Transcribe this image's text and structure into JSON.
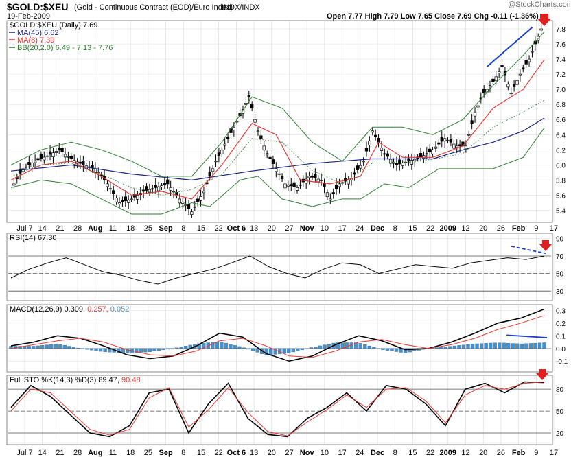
{
  "header": {
    "symbol": "$GOLD:$XEU",
    "description": "(Gold - Continuous Contract (EOD)/Euro Index)",
    "exchange": "INDX/INDX",
    "date": "19-Feb-2009",
    "copyright": "@StockCharts.com",
    "ohlc": "Open 7.77  High 7.79  Low 7.65  Close 7.69  Chg -0.11 (-1.36%)"
  },
  "legend": {
    "main": "$GOLD:$XEU (Daily) 7.69",
    "ma45": "MA(45) 6.62",
    "ma8": "MA(8) 7.39",
    "bb": "BB(20,2.0) 6.49 - 7.13 - 7.76",
    "rsi": "RSI(14) 67.30",
    "macd_label": "MACD(12,26,9)",
    "macd_v1": "0.309,",
    "macd_v2": "0.257,",
    "macd_v3": "0.052",
    "sto_label": "Full STO %K(14,3) %D(3)",
    "sto_v1": "89.47,",
    "sto_v2": "90.48"
  },
  "colors": {
    "price": "#000000",
    "ma45": "#1a237e",
    "ma8": "#e53935",
    "bb": "#2e7d32",
    "bb_mid": "#2e7d32",
    "macd_hist": "#4a90c8",
    "arrow": "#e02020",
    "trend": "#1a3fd0"
  },
  "x_labels": [
    "Jul 7",
    "14",
    "21",
    "28",
    "Aug",
    "11",
    "18",
    "25",
    "Sep",
    "8",
    "15",
    "22",
    "Oct 6",
    "13",
    "20",
    "27",
    "Nov",
    "10",
    "17",
    "24",
    "Dec",
    "8",
    "15",
    "22",
    "2009",
    "12",
    "20",
    "26",
    "Feb",
    "9",
    "17"
  ],
  "bold_x_labels": [
    "Aug",
    "Sep",
    "Oct 6",
    "Nov",
    "Dec",
    "2009",
    "Feb"
  ],
  "chart_data": [
    {
      "type": "candlestick",
      "title": "$GOLD:$XEU (Daily) 7.69",
      "ylim": [
        5.25,
        7.9
      ],
      "y_ticks": [
        "7.8",
        "7.6",
        "7.4",
        "7.2",
        "7.0",
        "6.8",
        "6.6",
        "6.4",
        "6.2",
        "6.0",
        "5.8",
        "5.6",
        "5.4"
      ],
      "close_points": [
        [
          1,
          5.75
        ],
        [
          4,
          5.95
        ],
        [
          8,
          6.05
        ],
        [
          12,
          6.12
        ],
        [
          16,
          6.2
        ],
        [
          20,
          6.08
        ],
        [
          24,
          6.0
        ],
        [
          28,
          5.95
        ],
        [
          32,
          5.75
        ],
        [
          36,
          5.5
        ],
        [
          40,
          5.55
        ],
        [
          44,
          5.65
        ],
        [
          48,
          5.7
        ],
        [
          52,
          5.75
        ],
        [
          56,
          5.55
        ],
        [
          60,
          5.38
        ],
        [
          64,
          5.65
        ],
        [
          68,
          6.05
        ],
        [
          72,
          6.35
        ],
        [
          76,
          6.65
        ],
        [
          79,
          6.9
        ],
        [
          82,
          6.45
        ],
        [
          85,
          6.15
        ],
        [
          88,
          5.95
        ],
        [
          91,
          5.75
        ],
        [
          95,
          5.7
        ],
        [
          99,
          5.85
        ],
        [
          103,
          5.8
        ],
        [
          106,
          5.55
        ],
        [
          109,
          5.75
        ],
        [
          113,
          5.82
        ],
        [
          117,
          6.05
        ],
        [
          120,
          6.45
        ],
        [
          124,
          6.15
        ],
        [
          128,
          6.0
        ],
        [
          132,
          6.05
        ],
        [
          136,
          6.1
        ],
        [
          140,
          6.2
        ],
        [
          144,
          6.35
        ],
        [
          148,
          6.25
        ],
        [
          151,
          6.25
        ],
        [
          154,
          6.7
        ],
        [
          157,
          6.95
        ],
        [
          160,
          7.1
        ],
        [
          163,
          7.3
        ],
        [
          166,
          6.95
        ],
        [
          169,
          7.2
        ],
        [
          172,
          7.4
        ],
        [
          175,
          7.7
        ],
        [
          176,
          7.8
        ],
        [
          177,
          7.69
        ]
      ],
      "series": [
        {
          "name": "MA(45)",
          "points": [
            [
              0,
              5.92
            ],
            [
              20,
              6.0
            ],
            [
              40,
              5.88
            ],
            [
              60,
              5.8
            ],
            [
              80,
              5.92
            ],
            [
              100,
              6.02
            ],
            [
              120,
              6.08
            ],
            [
              140,
              6.08
            ],
            [
              150,
              6.2
            ],
            [
              160,
              6.3
            ],
            [
              170,
              6.45
            ],
            [
              177,
              6.62
            ]
          ]
        },
        {
          "name": "MA(8)",
          "points": [
            [
              0,
              5.8
            ],
            [
              10,
              6.0
            ],
            [
              20,
              6.05
            ],
            [
              30,
              5.85
            ],
            [
              40,
              5.6
            ],
            [
              50,
              5.65
            ],
            [
              60,
              5.55
            ],
            [
              70,
              6.0
            ],
            [
              80,
              6.55
            ],
            [
              88,
              6.4
            ],
            [
              96,
              5.8
            ],
            [
              106,
              5.75
            ],
            [
              116,
              5.85
            ],
            [
              122,
              6.3
            ],
            [
              130,
              6.1
            ],
            [
              140,
              6.1
            ],
            [
              150,
              6.25
            ],
            [
              160,
              6.75
            ],
            [
              170,
              7.0
            ],
            [
              177,
              7.39
            ]
          ]
        },
        {
          "name": "BB upper",
          "points": [
            [
              0,
              6.0
            ],
            [
              10,
              6.2
            ],
            [
              20,
              6.3
            ],
            [
              30,
              6.2
            ],
            [
              40,
              6.05
            ],
            [
              50,
              5.85
            ],
            [
              60,
              5.85
            ],
            [
              70,
              6.3
            ],
            [
              80,
              6.9
            ],
            [
              90,
              6.75
            ],
            [
              100,
              6.3
            ],
            [
              110,
              6.05
            ],
            [
              120,
              6.5
            ],
            [
              130,
              6.5
            ],
            [
              140,
              6.4
            ],
            [
              150,
              6.6
            ],
            [
              160,
              7.05
            ],
            [
              170,
              7.45
            ],
            [
              177,
              7.76
            ]
          ]
        },
        {
          "name": "BB lower",
          "points": [
            [
              0,
              5.7
            ],
            [
              10,
              5.8
            ],
            [
              20,
              5.75
            ],
            [
              30,
              5.55
            ],
            [
              40,
              5.35
            ],
            [
              50,
              5.35
            ],
            [
              60,
              5.5
            ],
            [
              66,
              5.45
            ],
            [
              76,
              5.8
            ],
            [
              82,
              5.85
            ],
            [
              90,
              5.55
            ],
            [
              100,
              5.45
            ],
            [
              110,
              5.55
            ],
            [
              116,
              5.55
            ],
            [
              124,
              5.75
            ],
            [
              132,
              5.7
            ],
            [
              142,
              5.95
            ],
            [
              150,
              5.95
            ],
            [
              160,
              5.95
            ],
            [
              170,
              6.1
            ],
            [
              177,
              6.49
            ]
          ]
        }
      ]
    },
    {
      "type": "line",
      "title": "RSI(14) 67.30",
      "ylim": [
        20,
        95
      ],
      "y_ticks": [
        "90",
        "70",
        "50",
        "30"
      ],
      "values": [
        45,
        55,
        62,
        68,
        60,
        52,
        48,
        42,
        38,
        45,
        50,
        55,
        62,
        70,
        58,
        50,
        45,
        55,
        62,
        60,
        50,
        55,
        60,
        58,
        56,
        62,
        65,
        68,
        66,
        70
      ]
    },
    {
      "type": "line",
      "title": "MACD(12,26,9) 0.309, 0.257, 0.052",
      "ylim": [
        -0.18,
        0.34
      ],
      "y_ticks": [
        "0.3",
        "0.2",
        "0.1",
        "0.0",
        "-0.1"
      ],
      "macd": [
        0.02,
        0.05,
        0.1,
        0.08,
        0.02,
        -0.05,
        -0.08,
        -0.06,
        0.02,
        0.12,
        0.09,
        -0.04,
        -0.1,
        -0.06,
        0.03,
        0.1,
        0.06,
        -0.01,
        0.0,
        0.05,
        0.12,
        0.2,
        0.24,
        0.31
      ],
      "signal": [
        0.0,
        0.03,
        0.06,
        0.08,
        0.05,
        -0.01,
        -0.05,
        -0.06,
        -0.02,
        0.06,
        0.08,
        0.02,
        -0.06,
        -0.07,
        -0.02,
        0.05,
        0.07,
        0.03,
        0.0,
        0.03,
        0.08,
        0.15,
        0.2,
        0.26
      ]
    },
    {
      "type": "line",
      "title": "Full STO %K(14,3) %D(3) 89.47, 90.48",
      "ylim": [
        5,
        98
      ],
      "y_ticks": [
        "80",
        "50",
        "20"
      ],
      "k": [
        55,
        85,
        70,
        45,
        20,
        15,
        30,
        75,
        80,
        20,
        60,
        88,
        40,
        18,
        15,
        40,
        55,
        75,
        50,
        85,
        80,
        60,
        30,
        80,
        88,
        75,
        90,
        89
      ],
      "d": [
        50,
        80,
        75,
        50,
        25,
        17,
        25,
        68,
        82,
        28,
        52,
        82,
        48,
        22,
        16,
        35,
        52,
        72,
        55,
        80,
        82,
        64,
        34,
        72,
        85,
        80,
        88,
        90
      ]
    }
  ]
}
